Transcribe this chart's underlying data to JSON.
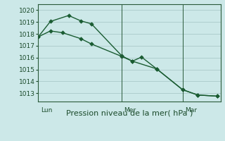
{
  "xlabel": "Pression niveau de la mer( hPa )",
  "bg_color": "#cce8e8",
  "grid_color": "#aacaca",
  "line_color": "#1a5c32",
  "yticks": [
    1013,
    1014,
    1015,
    1016,
    1017,
    1018,
    1019,
    1020
  ],
  "ylim": [
    1012.3,
    1020.5
  ],
  "xlim": [
    0,
    12
  ],
  "vline_x": [
    0.0,
    5.5,
    9.5
  ],
  "vline_labels": [
    "Lun",
    "Mer",
    "Mar"
  ],
  "series1_x": [
    0.0,
    0.8,
    2.0,
    2.8,
    3.5,
    5.5,
    6.2,
    6.8,
    7.8,
    9.5,
    10.5,
    11.8
  ],
  "series1_y": [
    1017.75,
    1019.05,
    1019.55,
    1019.1,
    1018.85,
    1016.15,
    1015.7,
    1016.05,
    1015.05,
    1013.3,
    1012.85,
    1012.75
  ],
  "series2_x": [
    0.0,
    0.8,
    1.6,
    2.8,
    3.5,
    5.5,
    6.2,
    7.8,
    9.5,
    10.5,
    11.8
  ],
  "series2_y": [
    1017.75,
    1018.25,
    1018.1,
    1017.6,
    1017.15,
    1016.1,
    1015.7,
    1015.05,
    1013.3,
    1012.85,
    1012.75
  ],
  "marker_size": 2.8,
  "linewidth": 1.0,
  "xlabel_fontsize": 8,
  "tick_fontsize": 6.5
}
